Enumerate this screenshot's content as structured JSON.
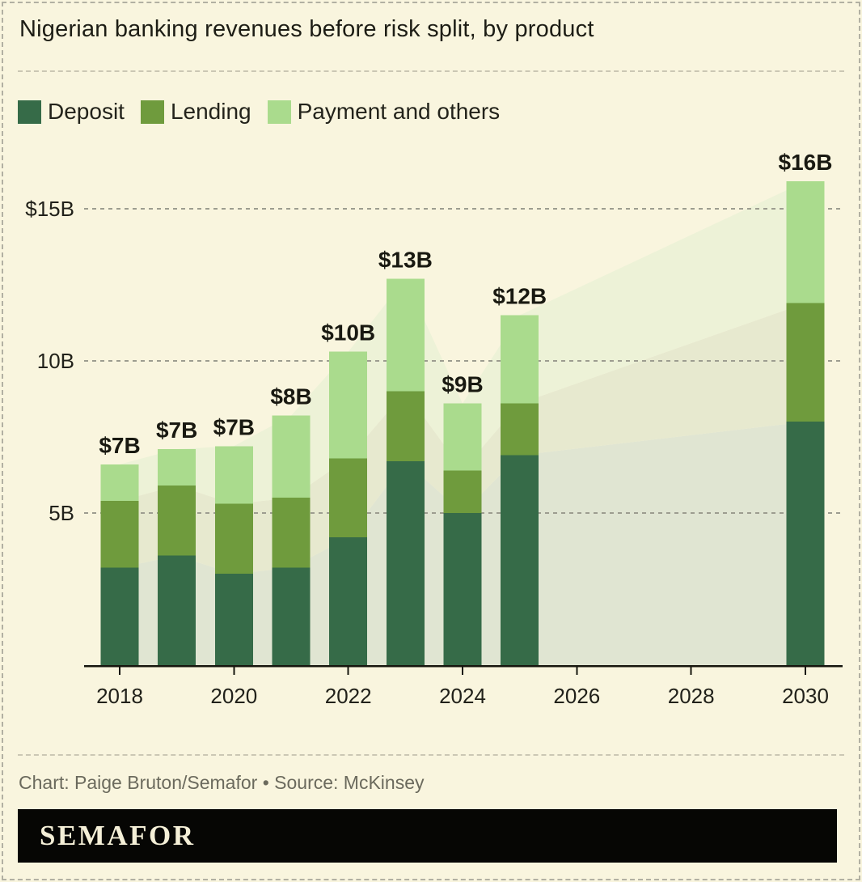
{
  "title": "Nigerian banking revenues before risk split, by product",
  "legend": {
    "items": [
      {
        "label": "Deposit",
        "color": "#366b48"
      },
      {
        "label": "Lending",
        "color": "#6f9b3d"
      },
      {
        "label": "Payment and others",
        "color": "#aadb8d"
      }
    ]
  },
  "chart_data": {
    "type": "bar",
    "stacked": true,
    "title": "Nigerian banking revenues before risk split, by product",
    "x": [
      2018,
      2019,
      2020,
      2021,
      2022,
      2023,
      2024,
      2025,
      2030
    ],
    "series": [
      {
        "name": "Deposit",
        "color": "#366b48",
        "area_color": "#e0e5d2",
        "values": [
          3.2,
          3.6,
          3.0,
          3.2,
          4.2,
          6.7,
          5.0,
          6.9,
          8.0
        ]
      },
      {
        "name": "Lending",
        "color": "#6f9b3d",
        "area_color": "#e7e9cf",
        "values": [
          2.2,
          2.3,
          2.3,
          2.3,
          2.6,
          2.3,
          1.4,
          1.7,
          3.9
        ]
      },
      {
        "name": "Payment and others",
        "color": "#aadb8d",
        "area_color": "#edf2d7",
        "values": [
          1.2,
          1.2,
          1.9,
          2.7,
          3.5,
          3.7,
          2.2,
          2.9,
          4.0
        ]
      }
    ],
    "bar_labels": [
      "$7B",
      "$7B",
      "$7B",
      "$8B",
      "$10B",
      "$13B",
      "$9B",
      "$12B",
      "$16B"
    ],
    "x_ticks": [
      2018,
      2020,
      2022,
      2024,
      2026,
      2028,
      2030
    ],
    "y_gridlines": [
      {
        "value": 15,
        "label": "$15B"
      },
      {
        "value": 10,
        "label": "10B"
      },
      {
        "value": 5,
        "label": "5B"
      }
    ],
    "ylim": [
      0,
      16.5
    ],
    "x_range": [
      2018,
      2030
    ],
    "grid": "dashed-horizontal",
    "legend_position": "top",
    "background_area": "pale stacked-area interpolation between bar years, 2018-2030"
  },
  "footer": {
    "text": "Chart: Paige Bruton/Semafor • Source: McKinsey"
  },
  "logo": {
    "text": "SEMAFOR"
  }
}
